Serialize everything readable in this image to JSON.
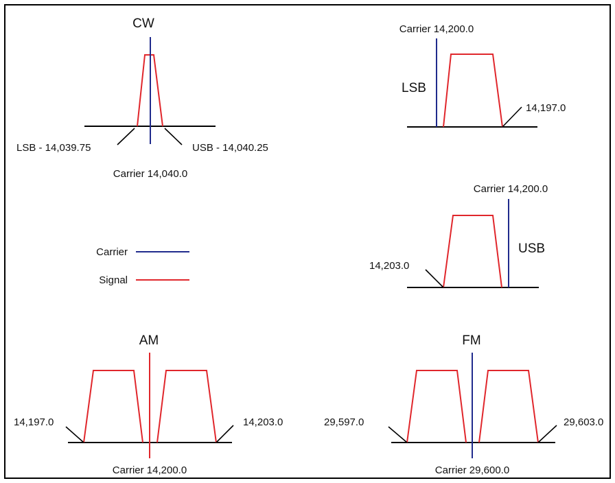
{
  "colors": {
    "carrier": "#1f2a8c",
    "signal": "#e0262b",
    "am_carrier": "#e0262b",
    "background": "#ffffff",
    "lines": "#000000"
  },
  "legend": {
    "carrier_label": "Carrier",
    "signal_label": "Signal"
  },
  "cw": {
    "title": "CW",
    "lsb_label": "LSB - 14,039.75",
    "usb_label": "USB - 14,040.25",
    "carrier_label": "Carrier 14,040.0"
  },
  "lsb": {
    "mode_label": "LSB",
    "carrier_label": "Carrier 14,200.0",
    "edge_label": "14,197.0"
  },
  "usb": {
    "mode_label": "USB",
    "carrier_label": "Carrier 14,200.0",
    "edge_label": "14,203.0"
  },
  "am": {
    "title": "AM",
    "left_label": "14,197.0",
    "right_label": "14,203.0",
    "carrier_label": "Carrier 14,200.0"
  },
  "fm": {
    "title": "FM",
    "left_label": "29,597.0",
    "right_label": "29,603.0",
    "carrier_label": "Carrier 29,600.0"
  }
}
